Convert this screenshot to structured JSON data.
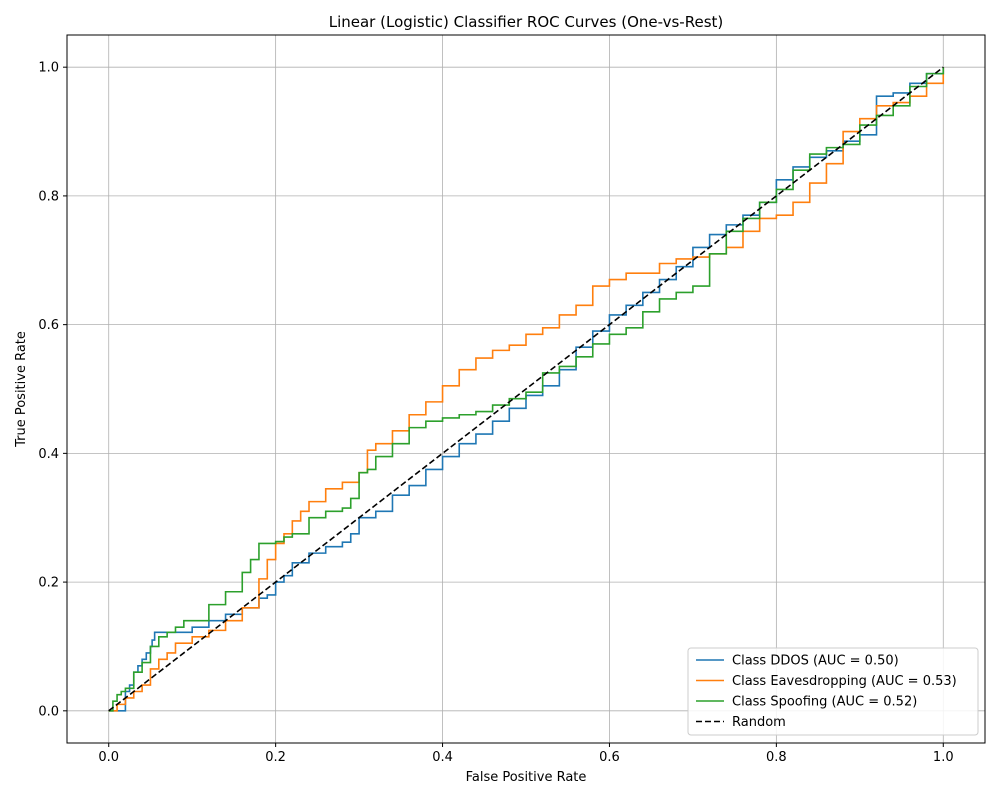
{
  "chart_data": {
    "type": "line",
    "title": "Linear (Logistic) Classifier ROC Curves (One-vs-Rest)",
    "xlabel": "False Positive Rate",
    "ylabel": "True Positive Rate",
    "xlim": [
      -0.05,
      1.05
    ],
    "ylim": [
      -0.05,
      1.05
    ],
    "xticks": [
      0.0,
      0.2,
      0.4,
      0.6,
      0.8,
      1.0
    ],
    "yticks": [
      0.0,
      0.2,
      0.4,
      0.6,
      0.8,
      1.0
    ],
    "xtick_labels": [
      "0.0",
      "0.2",
      "0.4",
      "0.6",
      "0.8",
      "1.0"
    ],
    "ytick_labels": [
      "0.0",
      "0.2",
      "0.4",
      "0.6",
      "0.8",
      "1.0"
    ],
    "grid": true,
    "legend_position": "bottom-right",
    "series": [
      {
        "name": "Class DDOS (AUC = 0.50)",
        "color": "#1f77b4",
        "style": "solid",
        "x": [
          0.0,
          0.01,
          0.02,
          0.025,
          0.03,
          0.035,
          0.04,
          0.045,
          0.05,
          0.052,
          0.055,
          0.06,
          0.08,
          0.1,
          0.12,
          0.14,
          0.16,
          0.18,
          0.19,
          0.2,
          0.21,
          0.22,
          0.24,
          0.26,
          0.28,
          0.29,
          0.3,
          0.32,
          0.34,
          0.36,
          0.38,
          0.4,
          0.42,
          0.44,
          0.46,
          0.48,
          0.5,
          0.52,
          0.54,
          0.56,
          0.58,
          0.6,
          0.62,
          0.64,
          0.66,
          0.68,
          0.7,
          0.72,
          0.74,
          0.76,
          0.78,
          0.8,
          0.82,
          0.84,
          0.86,
          0.88,
          0.9,
          0.92,
          0.94,
          0.96,
          0.98,
          1.0
        ],
        "y": [
          0.0,
          0.0,
          0.03,
          0.04,
          0.06,
          0.07,
          0.08,
          0.09,
          0.1,
          0.11,
          0.122,
          0.122,
          0.122,
          0.13,
          0.14,
          0.15,
          0.16,
          0.175,
          0.18,
          0.2,
          0.21,
          0.23,
          0.245,
          0.255,
          0.262,
          0.275,
          0.3,
          0.31,
          0.335,
          0.35,
          0.375,
          0.395,
          0.415,
          0.43,
          0.45,
          0.47,
          0.49,
          0.505,
          0.53,
          0.565,
          0.59,
          0.615,
          0.63,
          0.65,
          0.67,
          0.69,
          0.72,
          0.74,
          0.755,
          0.77,
          0.79,
          0.825,
          0.845,
          0.86,
          0.87,
          0.885,
          0.895,
          0.955,
          0.96,
          0.975,
          0.99,
          1.0
        ]
      },
      {
        "name": "Class Eavesdropping (AUC = 0.53)",
        "color": "#ff7f0e",
        "style": "solid",
        "x": [
          0.0,
          0.01,
          0.02,
          0.03,
          0.04,
          0.05,
          0.06,
          0.07,
          0.08,
          0.1,
          0.12,
          0.14,
          0.16,
          0.18,
          0.19,
          0.2,
          0.21,
          0.22,
          0.23,
          0.24,
          0.26,
          0.28,
          0.3,
          0.31,
          0.32,
          0.34,
          0.36,
          0.38,
          0.4,
          0.42,
          0.44,
          0.46,
          0.48,
          0.5,
          0.52,
          0.54,
          0.56,
          0.58,
          0.6,
          0.62,
          0.64,
          0.66,
          0.68,
          0.7,
          0.72,
          0.74,
          0.76,
          0.78,
          0.8,
          0.82,
          0.84,
          0.86,
          0.88,
          0.9,
          0.92,
          0.94,
          0.96,
          0.98,
          1.0
        ],
        "y": [
          0.0,
          0.01,
          0.02,
          0.03,
          0.04,
          0.065,
          0.08,
          0.09,
          0.105,
          0.115,
          0.125,
          0.14,
          0.16,
          0.205,
          0.235,
          0.26,
          0.275,
          0.295,
          0.31,
          0.325,
          0.345,
          0.355,
          0.37,
          0.405,
          0.415,
          0.435,
          0.46,
          0.48,
          0.505,
          0.53,
          0.548,
          0.56,
          0.568,
          0.585,
          0.595,
          0.615,
          0.63,
          0.66,
          0.67,
          0.68,
          0.68,
          0.695,
          0.702,
          0.705,
          0.71,
          0.72,
          0.745,
          0.765,
          0.77,
          0.79,
          0.82,
          0.85,
          0.9,
          0.92,
          0.94,
          0.945,
          0.955,
          0.975,
          1.0
        ]
      },
      {
        "name": "Class Spoofing (AUC = 0.52)",
        "color": "#2ca02c",
        "style": "solid",
        "x": [
          0.0,
          0.005,
          0.01,
          0.015,
          0.02,
          0.03,
          0.04,
          0.05,
          0.06,
          0.07,
          0.08,
          0.09,
          0.1,
          0.12,
          0.14,
          0.16,
          0.17,
          0.18,
          0.2,
          0.21,
          0.22,
          0.24,
          0.26,
          0.28,
          0.29,
          0.3,
          0.31,
          0.32,
          0.34,
          0.36,
          0.38,
          0.4,
          0.42,
          0.44,
          0.46,
          0.48,
          0.5,
          0.52,
          0.54,
          0.56,
          0.58,
          0.6,
          0.62,
          0.64,
          0.66,
          0.68,
          0.7,
          0.72,
          0.74,
          0.76,
          0.78,
          0.8,
          0.82,
          0.84,
          0.86,
          0.88,
          0.9,
          0.92,
          0.94,
          0.96,
          0.98,
          1.0
        ],
        "y": [
          0.0,
          0.015,
          0.025,
          0.03,
          0.035,
          0.06,
          0.075,
          0.1,
          0.115,
          0.122,
          0.13,
          0.14,
          0.14,
          0.165,
          0.185,
          0.215,
          0.235,
          0.26,
          0.263,
          0.27,
          0.275,
          0.3,
          0.31,
          0.315,
          0.33,
          0.37,
          0.375,
          0.395,
          0.415,
          0.44,
          0.45,
          0.455,
          0.46,
          0.465,
          0.475,
          0.485,
          0.495,
          0.525,
          0.535,
          0.55,
          0.57,
          0.585,
          0.595,
          0.62,
          0.64,
          0.65,
          0.66,
          0.71,
          0.745,
          0.765,
          0.79,
          0.81,
          0.84,
          0.865,
          0.875,
          0.88,
          0.91,
          0.925,
          0.94,
          0.97,
          0.99,
          1.0
        ]
      },
      {
        "name": "Random",
        "color": "#000000",
        "style": "dashed",
        "x": [
          0.0,
          1.0
        ],
        "y": [
          0.0,
          1.0
        ]
      }
    ]
  }
}
